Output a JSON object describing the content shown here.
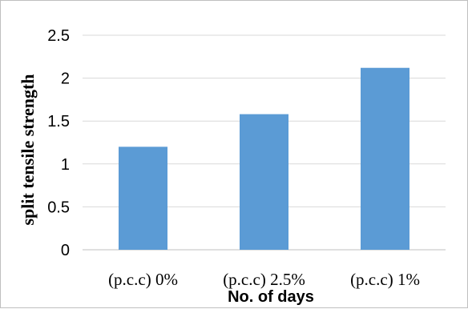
{
  "chart_data": {
    "type": "bar",
    "title": "",
    "xlabel": "No. of days",
    "ylabel": "split tensile strength",
    "categories": [
      "(p.c.c) 0%",
      "(p.c.c) 2.5%",
      "(p.c.c) 1%"
    ],
    "values": [
      1.2,
      1.58,
      2.12
    ],
    "ylim": [
      0,
      2.5
    ],
    "yticks": [
      "0",
      "0.5",
      "1",
      "1.5",
      "2",
      "2.5"
    ],
    "grid": true,
    "legend": "none",
    "bar_color": "#5b9bd5",
    "grid_color": "#d9d9d9"
  }
}
